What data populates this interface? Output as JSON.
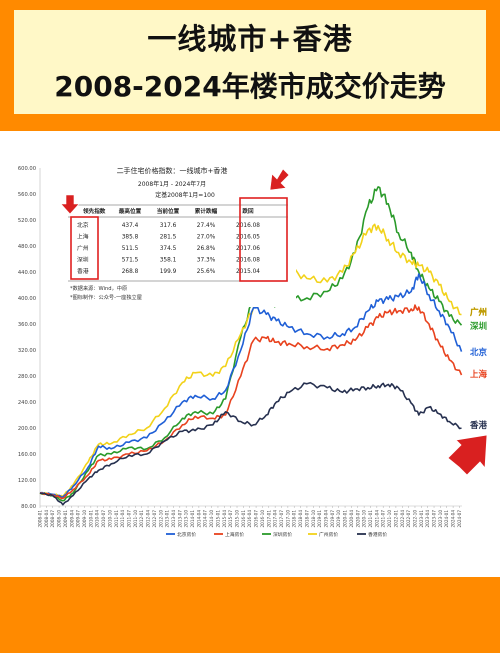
{
  "header": {
    "title_line1": "一线城市+香港",
    "title_line2": "2008-2024年楼市成交价走势"
  },
  "colors": {
    "background": "#ff8a00",
    "title_bg": "#fff8c7",
    "arrow_red": "#d92020"
  },
  "table": {
    "title": "二手住宅价格指数：一线城市+香港",
    "period": "2008年1月 - 2024年7月",
    "base": "定基2008年1月=100",
    "headers": [
      "领先指数",
      "最高位置",
      "当前位置",
      "累计跌幅",
      "跌回"
    ],
    "rows": [
      [
        "北京",
        "437.4",
        "317.6",
        "27.4%",
        "2016.08"
      ],
      [
        "上海",
        "385.8",
        "281.5",
        "27.0%",
        "2016.05"
      ],
      [
        "广州",
        "511.5",
        "374.5",
        "26.8%",
        "2017.06"
      ],
      [
        "深圳",
        "571.5",
        "358.1",
        "37.3%",
        "2016.08"
      ],
      [
        "香港",
        "268.8",
        "199.9",
        "25.6%",
        "2015.04"
      ]
    ],
    "notes": [
      "*数据来源：Wind，中原",
      "*图标制作：公众号-一座独立屋"
    ]
  },
  "chart_data": {
    "type": "line",
    "ylim": [
      80,
      600
    ],
    "yticks": [
      "80.00",
      "120.00",
      "160.00",
      "200.00",
      "240.00",
      "280.00",
      "320.00",
      "360.00",
      "400.00",
      "440.00",
      "480.00",
      "520.00",
      "560.00",
      "600.00"
    ],
    "xticks": [
      "2008-01",
      "2008-04",
      "2008-07",
      "2008-10",
      "2009-01",
      "2009-04",
      "2009-07",
      "2009-10",
      "2010-01",
      "2010-04",
      "2010-07",
      "2010-10",
      "2011-01",
      "2011-04",
      "2011-07",
      "2011-10",
      "2012-01",
      "2012-04",
      "2012-07",
      "2012-10",
      "2013-01",
      "2013-04",
      "2013-07",
      "2013-10",
      "2014-01",
      "2014-04",
      "2014-07",
      "2014-10",
      "2015-01",
      "2015-04",
      "2015-07",
      "2015-10",
      "2016-01",
      "2016-04",
      "2016-07",
      "2016-10",
      "2017-01",
      "2017-04",
      "2017-07",
      "2017-10",
      "2018-01",
      "2018-04",
      "2018-07",
      "2018-10",
      "2019-01",
      "2019-04",
      "2019-07",
      "2019-10",
      "2020-01",
      "2020-04",
      "2020-07",
      "2020-10",
      "2021-01",
      "2021-04",
      "2021-07",
      "2021-10",
      "2022-01",
      "2022-04",
      "2022-07",
      "2022-10",
      "2023-01",
      "2023-04",
      "2023-07",
      "2023-10",
      "2024-01",
      "2024-04",
      "2024-07"
    ],
    "series": [
      {
        "name": "北京房价",
        "label": "北京",
        "color": "#1f5fd6",
        "x": [
          2008.0,
          2008.5,
          2008.9,
          2009.3,
          2009.9,
          2010.3,
          2010.8,
          2011.5,
          2012.2,
          2012.9,
          2013.6,
          2014.1,
          2014.8,
          2015.3,
          2015.9,
          2016.4,
          2016.9,
          2017.3,
          2017.8,
          2018.5,
          2019.3,
          2019.9,
          2020.4,
          2020.9,
          2021.3,
          2021.7,
          2022.1,
          2022.6,
          2022.9,
          2023.3,
          2023.7,
          2024.1,
          2024.58
        ],
        "y": [
          100,
          98,
          94,
          110,
          140,
          172,
          168,
          178,
          185,
          210,
          240,
          250,
          245,
          258,
          320,
          385,
          375,
          365,
          355,
          345,
          340,
          345,
          355,
          380,
          395,
          398,
          402,
          410,
          437,
          405,
          380,
          355,
          317.6
        ]
      },
      {
        "name": "上海房价",
        "label": "上海",
        "color": "#e8421e",
        "x": [
          2008.0,
          2008.5,
          2008.9,
          2009.3,
          2009.9,
          2010.3,
          2010.8,
          2011.5,
          2012.2,
          2012.9,
          2013.6,
          2014.1,
          2014.8,
          2015.3,
          2015.9,
          2016.4,
          2016.9,
          2017.3,
          2017.8,
          2018.5,
          2019.3,
          2019.9,
          2020.4,
          2020.9,
          2021.3,
          2021.7,
          2022.1,
          2022.6,
          2022.9,
          2023.3,
          2023.7,
          2024.1,
          2024.58
        ],
        "y": [
          100,
          97,
          92,
          105,
          128,
          150,
          152,
          160,
          165,
          180,
          205,
          218,
          215,
          220,
          280,
          335,
          338,
          332,
          330,
          325,
          322,
          328,
          335,
          355,
          370,
          378,
          380,
          383,
          386,
          360,
          330,
          305,
          281.5
        ]
      },
      {
        "name": "深圳房价",
        "label": "深圳",
        "color": "#2a9a2a",
        "x": [
          2008.0,
          2008.5,
          2008.9,
          2009.3,
          2009.9,
          2010.3,
          2010.8,
          2011.5,
          2012.2,
          2012.9,
          2013.6,
          2014.1,
          2014.8,
          2015.3,
          2015.9,
          2016.4,
          2016.9,
          2017.3,
          2017.8,
          2018.5,
          2019.3,
          2019.9,
          2020.4,
          2020.9,
          2021.3,
          2021.7,
          2022.1,
          2022.6,
          2022.9,
          2023.3,
          2023.7,
          2024.1,
          2024.58
        ],
        "y": [
          100,
          96,
          88,
          100,
          135,
          158,
          160,
          170,
          168,
          185,
          215,
          225,
          222,
          245,
          340,
          400,
          395,
          390,
          398,
          400,
          410,
          430,
          470,
          540,
          571,
          545,
          500,
          470,
          440,
          415,
          395,
          372,
          358.1
        ]
      },
      {
        "name": "广州房价",
        "label": "广州",
        "color": "#f2d21a",
        "x": [
          2008.0,
          2008.5,
          2008.9,
          2009.3,
          2009.9,
          2010.3,
          2010.8,
          2011.5,
          2012.2,
          2012.9,
          2013.6,
          2014.1,
          2014.8,
          2015.3,
          2015.9,
          2016.4,
          2016.9,
          2017.3,
          2017.8,
          2018.5,
          2019.3,
          2019.9,
          2020.4,
          2020.9,
          2021.3,
          2021.7,
          2022.1,
          2022.6,
          2022.9,
          2023.3,
          2023.7,
          2024.1,
          2024.58
        ],
        "y": [
          100,
          98,
          95,
          112,
          148,
          175,
          176,
          190,
          200,
          230,
          270,
          285,
          280,
          295,
          345,
          385,
          425,
          440,
          445,
          430,
          425,
          440,
          470,
          505,
          511,
          490,
          470,
          455,
          450,
          440,
          420,
          395,
          374.5
        ]
      },
      {
        "name": "香港房价",
        "label": "香港",
        "color": "#26304f",
        "x": [
          2008.0,
          2008.5,
          2008.9,
          2009.3,
          2009.9,
          2010.3,
          2010.8,
          2011.5,
          2012.2,
          2012.9,
          2013.6,
          2014.1,
          2014.8,
          2015.3,
          2015.9,
          2016.4,
          2016.9,
          2017.3,
          2017.8,
          2018.5,
          2019.3,
          2019.9,
          2020.4,
          2020.9,
          2021.3,
          2021.7,
          2022.1,
          2022.6,
          2022.9,
          2023.3,
          2023.7,
          2024.1,
          2024.58
        ],
        "y": [
          100,
          96,
          82,
          96,
          122,
          135,
          145,
          158,
          160,
          180,
          195,
          196,
          205,
          225,
          210,
          205,
          220,
          240,
          255,
          268,
          262,
          255,
          260,
          262,
          265,
          267,
          262,
          238,
          220,
          232,
          222,
          210,
          199.9
        ]
      }
    ]
  }
}
